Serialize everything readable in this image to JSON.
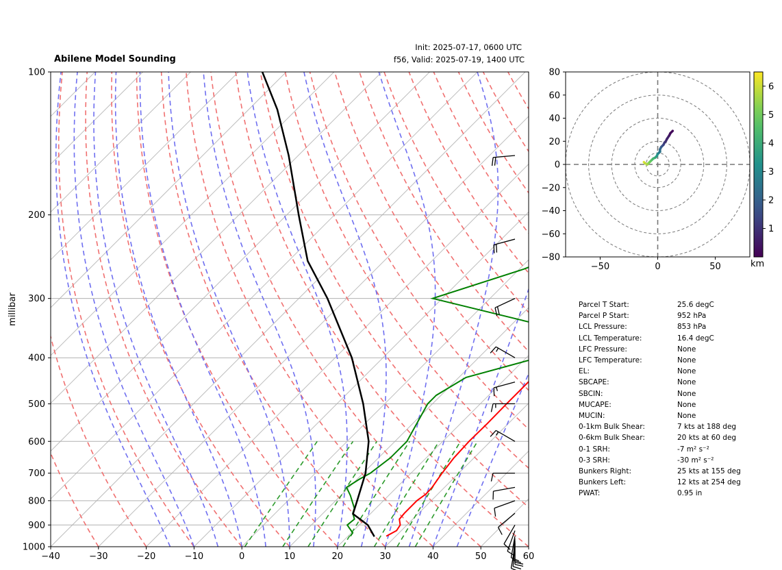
{
  "header": {
    "title": "Abilene Model Sounding",
    "init": "Init: 2025-07-17, 0600 UTC",
    "valid": "f56, Valid: 2025-07-19, 1400 UTC"
  },
  "chart_data": [
    {
      "type": "line",
      "subtype": "skew-t log-p",
      "ylabel": "millibar",
      "xlim": [
        -40,
        60
      ],
      "ylim": [
        1000,
        100
      ],
      "y_scale": "log",
      "x_ticks": [
        -40,
        -30,
        -20,
        -10,
        0,
        10,
        20,
        30,
        40,
        50,
        60
      ],
      "y_ticks": [
        1000,
        900,
        800,
        700,
        600,
        500,
        400,
        300,
        200,
        100
      ],
      "series": [
        {
          "role": "temperature",
          "color": "#ff0000",
          "points": [
            [
              950,
              28.0
            ],
            [
              925,
              29.0
            ],
            [
              900,
              28.6
            ],
            [
              875,
              27.2
            ],
            [
              850,
              27.0
            ],
            [
              800,
              27.0
            ],
            [
              775,
              27.5
            ],
            [
              750,
              27.4
            ],
            [
              700,
              26.5
            ],
            [
              650,
              25.8
            ],
            [
              600,
              25.5
            ],
            [
              550,
              25.6
            ],
            [
              500,
              25.5
            ],
            [
              450,
              25.5
            ],
            [
              400,
              25.0
            ],
            [
              350,
              25.0
            ],
            [
              300,
              23.3
            ],
            [
              250,
              21.5
            ],
            [
              200,
              20.8
            ],
            [
              175,
              20.9
            ],
            [
              150,
              20.9
            ],
            [
              125,
              23.5
            ],
            [
              110,
              26.0
            ],
            [
              100,
              27.0
            ]
          ]
        },
        {
          "role": "dewpoint",
          "color": "#008000",
          "points": [
            [
              950,
              20.5
            ],
            [
              935,
              20.3
            ],
            [
              900,
              17.5
            ],
            [
              875,
              17.8
            ],
            [
              850,
              16.2
            ],
            [
              830,
              15.5
            ],
            [
              780,
              12.0
            ],
            [
              750,
              9.5
            ],
            [
              720,
              10.5
            ],
            [
              700,
              11.5
            ],
            [
              650,
              12.5
            ],
            [
              600,
              12.5
            ],
            [
              500,
              9.0
            ],
            [
              480,
              9.0
            ],
            [
              440,
              11.5
            ],
            [
              405,
              21.0
            ],
            [
              370,
              22.0
            ],
            [
              340,
              15.5
            ],
            [
              300,
              -12.0
            ],
            [
              260,
              1.0
            ],
            [
              230,
              9.0
            ],
            [
              200,
              14.5
            ],
            [
              185,
              18.0
            ],
            [
              150,
              20.0
            ],
            [
              140,
              21.0
            ],
            [
              115,
              24.0
            ],
            [
              100,
              27.5
            ]
          ]
        },
        {
          "role": "parcel",
          "color": "#000000",
          "points": [
            [
              952,
              25.6
            ],
            [
              900,
              21.8
            ],
            [
              853,
              16.4
            ],
            [
              800,
              14.5
            ],
            [
              700,
              10.5
            ],
            [
              600,
              4.5
            ],
            [
              500,
              -4.5
            ],
            [
              400,
              -16.5
            ],
            [
              300,
              -34.0
            ],
            [
              250,
              -46.0
            ],
            [
              200,
              -57.5
            ],
            [
              150,
              -72.0
            ],
            [
              120,
              -84.0
            ],
            [
              100,
              -95.0
            ]
          ]
        }
      ],
      "wind_barbs": [
        {
          "p": 1000,
          "speed_kt": 10,
          "dir_deg": 190
        },
        {
          "p": 990,
          "speed_kt": 10,
          "dir_deg": 185
        },
        {
          "p": 980,
          "speed_kt": 10,
          "dir_deg": 180
        },
        {
          "p": 970,
          "speed_kt": 10,
          "dir_deg": 180
        },
        {
          "p": 960,
          "speed_kt": 10,
          "dir_deg": 185
        },
        {
          "p": 950,
          "speed_kt": 10,
          "dir_deg": 190
        },
        {
          "p": 925,
          "speed_kt": 10,
          "dir_deg": 200
        },
        {
          "p": 900,
          "speed_kt": 10,
          "dir_deg": 210
        },
        {
          "p": 850,
          "speed_kt": 10,
          "dir_deg": 230
        },
        {
          "p": 800,
          "speed_kt": 10,
          "dir_deg": 250
        },
        {
          "p": 750,
          "speed_kt": 10,
          "dir_deg": 260
        },
        {
          "p": 700,
          "speed_kt": 10,
          "dir_deg": 270
        },
        {
          "p": 600,
          "speed_kt": 15,
          "dir_deg": 300
        },
        {
          "p": 500,
          "speed_kt": 15,
          "dir_deg": 270
        },
        {
          "p": 450,
          "speed_kt": 15,
          "dir_deg": 255
        },
        {
          "p": 400,
          "speed_kt": 15,
          "dir_deg": 300
        },
        {
          "p": 300,
          "speed_kt": 20,
          "dir_deg": 245
        },
        {
          "p": 225,
          "speed_kt": 20,
          "dir_deg": 255
        },
        {
          "p": 150,
          "speed_kt": 20,
          "dir_deg": 265
        }
      ]
    },
    {
      "type": "line",
      "subtype": "hodograph",
      "xlim": [
        -80,
        80
      ],
      "ylim": [
        -80,
        80
      ],
      "x_ticks": [
        -50,
        0,
        50
      ],
      "y_ticks": [
        -80,
        -60,
        -40,
        -20,
        0,
        20,
        40,
        60,
        80
      ],
      "rings": [
        10,
        20,
        40,
        60,
        80
      ],
      "colorbar": {
        "label": "km",
        "range": [
          0,
          6.5
        ],
        "ticks": [
          1,
          2,
          3,
          4,
          5,
          6
        ]
      },
      "points": [
        [
          -12,
          2,
          6.3
        ],
        [
          -11,
          1,
          6.0
        ],
        [
          -9,
          0,
          5.7
        ],
        [
          -8,
          1,
          5.5
        ],
        [
          -7,
          2,
          5.2
        ],
        [
          -6,
          3,
          5.0
        ],
        [
          -5,
          4,
          4.8
        ],
        [
          -4,
          5,
          4.5
        ],
        [
          -2,
          6,
          4.0
        ],
        [
          -1,
          7,
          3.7
        ],
        [
          0,
          9,
          3.3
        ],
        [
          1,
          10,
          3.0
        ],
        [
          2,
          11,
          2.7
        ],
        [
          2,
          13,
          2.3
        ],
        [
          3,
          15,
          2.0
        ],
        [
          4,
          16,
          1.8
        ],
        [
          5,
          17,
          1.5
        ],
        [
          6,
          19,
          1.2
        ],
        [
          7,
          20,
          1.0
        ],
        [
          8,
          22,
          0.8
        ],
        [
          10,
          25,
          0.5
        ],
        [
          11,
          27,
          0.3
        ],
        [
          13,
          29,
          0.1
        ]
      ]
    }
  ],
  "stats": [
    {
      "label": "Parcel T Start:",
      "value": "25.6 degC"
    },
    {
      "label": "Parcel P Start:",
      "value": "952 hPa"
    },
    {
      "label": "LCL Pressure:",
      "value": "853 hPa"
    },
    {
      "label": "LCL Temperature:",
      "value": "16.4 degC"
    },
    {
      "label": "LFC Pressure:",
      "value": "None"
    },
    {
      "label": "LFC Temperature:",
      "value": "None"
    },
    {
      "label": "EL:",
      "value": "None"
    },
    {
      "label": "SBCAPE:",
      "value": "None"
    },
    {
      "label": "SBCIN:",
      "value": "None"
    },
    {
      "label": "MUCAPE:",
      "value": "None"
    },
    {
      "label": "MUCIN:",
      "value": "None"
    },
    {
      "label": "0-1km Bulk Shear:",
      "value": "7 kts at 188 deg"
    },
    {
      "label": "0-6km Bulk Shear:",
      "value": "20 kts at 60 deg"
    },
    {
      "label": "0-1 SRH:",
      "value": "-7 m² s⁻²"
    },
    {
      "label": "0-3 SRH:",
      "value": "-30 m² s⁻²"
    },
    {
      "label": "Bunkers Right:",
      "value": "25 kts at 155 deg"
    },
    {
      "label": "Bunkers Left:",
      "value": "12 kts at 254 deg"
    },
    {
      "label": "PWAT:",
      "value": "0.95 in"
    }
  ]
}
